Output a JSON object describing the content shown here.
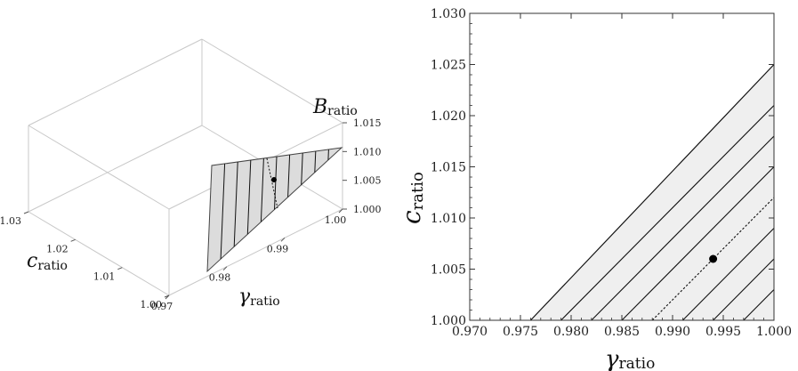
{
  "chart_data": [
    {
      "type": "surface3d",
      "xlabel": {
        "main": "γ",
        "sub": "ratio"
      },
      "ylabel": {
        "main": "c",
        "sub": "ratio"
      },
      "zlabel": {
        "main": "B",
        "sub": "ratio"
      },
      "x_ticks": [
        "0.97",
        "0.98",
        "0.99",
        "1.00"
      ],
      "y_ticks": [
        "1.00",
        "1.01",
        "1.02",
        "1.03"
      ],
      "z_ticks": [
        "1.000",
        "1.005",
        "1.010",
        "1.015"
      ],
      "xlim": [
        0.97,
        1.0
      ],
      "ylim": [
        1.0,
        1.03
      ],
      "zlim": [
        1.0,
        1.015
      ],
      "region": "c_ratio >= gamma_ratio",
      "contour_count": 9,
      "marked_point": {
        "x": 0.994,
        "y": 1.006
      }
    },
    {
      "type": "contour",
      "xlabel": {
        "main": "γ",
        "sub": "ratio"
      },
      "ylabel": {
        "main": "c",
        "sub": "ratio"
      },
      "xlim": [
        0.97,
        1.0
      ],
      "ylim": [
        1.0,
        1.03
      ],
      "x_ticks": [
        "0.970",
        "0.975",
        "0.980",
        "0.985",
        "0.990",
        "0.995",
        "1.000"
      ],
      "y_ticks": [
        "1.000",
        "1.005",
        "1.010",
        "1.015",
        "1.020",
        "1.025",
        "1.030"
      ],
      "x_tick_values": [
        0.97,
        0.975,
        0.98,
        0.985,
        0.99,
        0.995,
        1.0
      ],
      "y_tick_values": [
        1.0,
        1.005,
        1.01,
        1.015,
        1.02,
        1.025,
        1.03
      ],
      "region": "c_ratio >= gamma_ratio",
      "contour_line_x_intercepts_at_c1": [
        0.976,
        0.979,
        0.982,
        0.985,
        0.991,
        0.994,
        0.997
      ],
      "dashed_line_x_intercept_at_c1": 0.988,
      "marked_point": {
        "x": 0.994,
        "y": 1.006
      },
      "colors": {
        "region_fill": "#efefef",
        "lines": "#111111",
        "marker": "#000000"
      }
    }
  ]
}
